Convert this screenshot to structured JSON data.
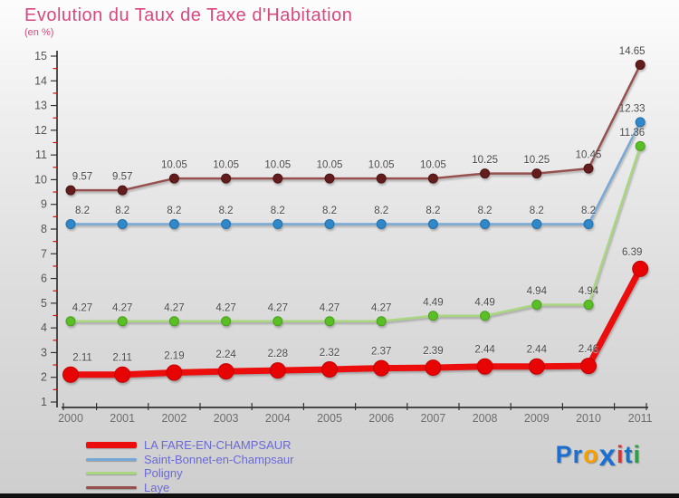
{
  "header": {
    "title": "Evolution du Taux de Taxe d'Habitation",
    "subtitle": "(en %)"
  },
  "chart_data": {
    "type": "line",
    "title": "Evolution du Taux de Taxe d'Habitation",
    "subtitle": "(en %)",
    "x": [
      2000,
      2001,
      2002,
      2003,
      2004,
      2005,
      2006,
      2007,
      2008,
      2009,
      2010,
      2011
    ],
    "series": [
      {
        "name": "LA FARE-EN-CHAMPSAUR",
        "values": [
          2.11,
          2.11,
          2.19,
          2.24,
          2.28,
          2.32,
          2.37,
          2.39,
          2.44,
          2.44,
          2.46,
          6.39
        ],
        "line_color": "#ec0d0d",
        "marker_color": "#e60404",
        "marker_stroke": "#c40000",
        "line_width": 7,
        "marker_radius": 8.5,
        "z": 4
      },
      {
        "name": "Saint-Bonnet-en-Champsaur",
        "values": [
          8.2,
          8.2,
          8.2,
          8.2,
          8.2,
          8.2,
          8.2,
          8.2,
          8.2,
          8.2,
          8.2,
          12.33
        ],
        "line_color": "#76a9d6",
        "marker_color": "#2f88c9",
        "marker_stroke": "#256fa6",
        "line_width": 2.5,
        "marker_radius": 5,
        "z": 2
      },
      {
        "name": "Poligny",
        "values": [
          4.27,
          4.27,
          4.27,
          4.27,
          4.27,
          4.27,
          4.27,
          4.49,
          4.49,
          4.94,
          4.94,
          11.36
        ],
        "line_color": "#a9d77f",
        "marker_color": "#5abf27",
        "marker_stroke": "#47a018",
        "line_width": 2.5,
        "marker_radius": 5,
        "z": 3
      },
      {
        "name": "Laye",
        "values": [
          9.57,
          9.57,
          10.05,
          10.05,
          10.05,
          10.05,
          10.05,
          10.05,
          10.25,
          10.25,
          10.45,
          14.65
        ],
        "line_color": "#96514f",
        "marker_color": "#641d1d",
        "marker_stroke": "#4c1414",
        "line_width": 2.5,
        "marker_radius": 5,
        "z": 1
      }
    ],
    "ylim": [
      1,
      15
    ],
    "y_ticks": [
      1,
      2,
      3,
      4,
      5,
      6,
      7,
      8,
      9,
      10,
      11,
      12,
      13,
      14,
      15
    ],
    "xlabel": "",
    "ylabel": "",
    "grid": false,
    "value_labels": true,
    "legend_position": "bottom-left"
  },
  "axis": {
    "axis_color": "#1a1a1a",
    "major_tick_color": "#333333",
    "minor_tick_color": "#cc1111",
    "y_label_color": "#555555",
    "x_label_color": "#6e6e6e",
    "value_label_color": "#4a4a4a"
  },
  "logo": {
    "text": "Proxiti",
    "letters": [
      {
        "ch": "P",
        "color": "#1b6fd2",
        "big": false
      },
      {
        "ch": "r",
        "color": "#1b6fd2",
        "big": false
      },
      {
        "ch": "o",
        "color": "#f59f00",
        "big": false
      },
      {
        "ch": "x",
        "color": "#1b6fd2",
        "big": true
      },
      {
        "ch": "i",
        "color": "#e03131",
        "big": false
      },
      {
        "ch": "t",
        "color": "#1971c2",
        "big": false
      },
      {
        "ch": "i",
        "color": "#2f9e44",
        "big": false
      }
    ]
  },
  "colors": {
    "title": "#d8487d",
    "legend_text": "#6a6ad8",
    "background_top": "#fdfdfd",
    "background_bottom": "#cecece",
    "bottom_bar": "#111111"
  }
}
